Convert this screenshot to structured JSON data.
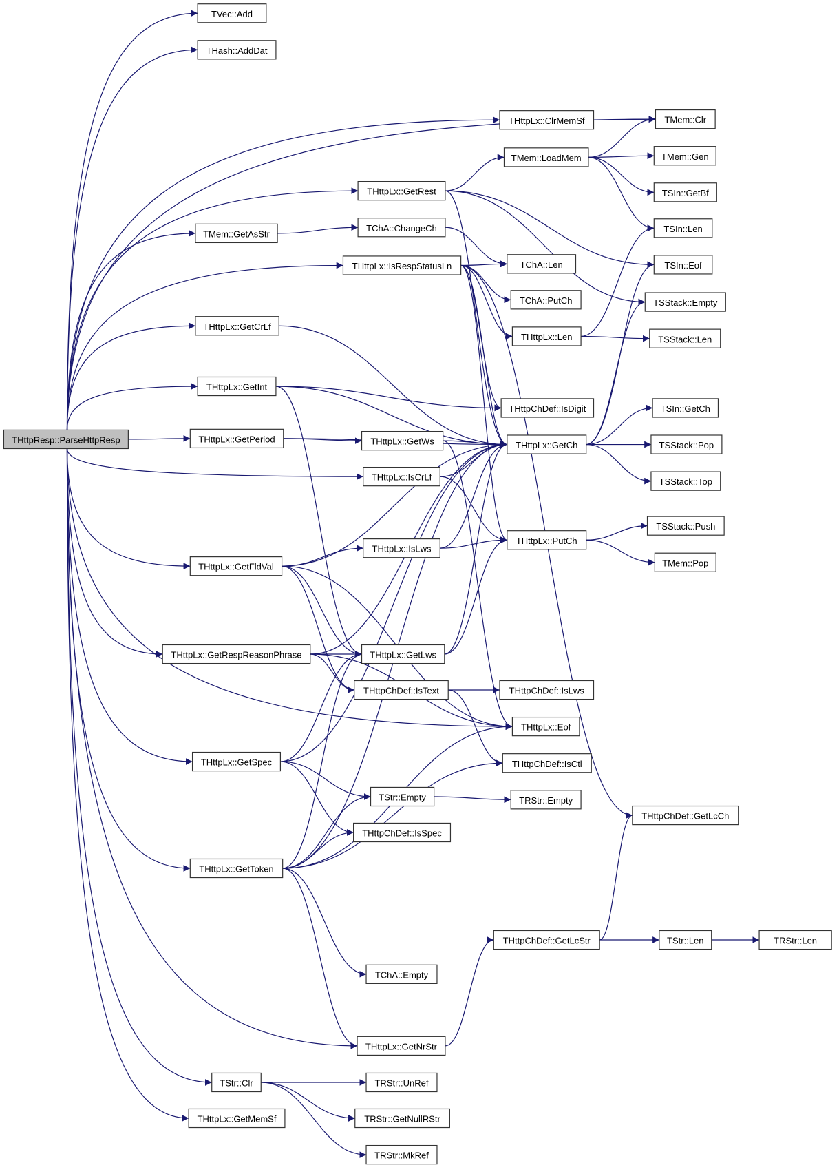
{
  "colors": {
    "edge": "#191970",
    "root_fill": "#bfbfbf",
    "node_fill": "#ffffff"
  },
  "nodes": [
    {
      "id": "root",
      "label": "THttpResp::ParseHttpResp"
    },
    {
      "id": "tvecadd",
      "label": "TVec::Add"
    },
    {
      "id": "hashadddat",
      "label": "THash::AddDat"
    },
    {
      "id": "memclr",
      "label": "TMem::Clr"
    },
    {
      "id": "clrmemsf",
      "label": "THttpLx::ClrMemSf"
    },
    {
      "id": "loadmem",
      "label": "TMem::LoadMem"
    },
    {
      "id": "memgen",
      "label": "TMem::Gen"
    },
    {
      "id": "sigetbf",
      "label": "TSIn::GetBf"
    },
    {
      "id": "getrest",
      "label": "THttpLx::GetRest"
    },
    {
      "id": "silen",
      "label": "TSIn::Len"
    },
    {
      "id": "getasstr",
      "label": "TMem::GetAsStr"
    },
    {
      "id": "changech",
      "label": "TChA::ChangeCh"
    },
    {
      "id": "sieof",
      "label": "TSIn::Eof"
    },
    {
      "id": "isrespstatusln",
      "label": "THttpLx::IsRespStatusLn"
    },
    {
      "id": "chalen",
      "label": "TChA::Len"
    },
    {
      "id": "ssempty",
      "label": "TSStack::Empty"
    },
    {
      "id": "chaputch",
      "label": "TChA::PutCh"
    },
    {
      "id": "lxlen",
      "label": "THttpLx::Len"
    },
    {
      "id": "sslen",
      "label": "TSStack::Len"
    },
    {
      "id": "getcrlf",
      "label": "THttpLx::GetCrLf"
    },
    {
      "id": "getint",
      "label": "THttpLx::GetInt"
    },
    {
      "id": "isdigit",
      "label": "THttpChDef::IsDigit"
    },
    {
      "id": "sigetch",
      "label": "TSIn::GetCh"
    },
    {
      "id": "getperiod",
      "label": "THttpLx::GetPeriod"
    },
    {
      "id": "getws",
      "label": "THttpLx::GetWs"
    },
    {
      "id": "getch",
      "label": "THttpLx::GetCh"
    },
    {
      "id": "sspop",
      "label": "TSStack::Pop"
    },
    {
      "id": "iscrlf",
      "label": "THttpLx::IsCrLf"
    },
    {
      "id": "sstop",
      "label": "TSStack::Top"
    },
    {
      "id": "sspush",
      "label": "TSStack::Push"
    },
    {
      "id": "putch",
      "label": "THttpLx::PutCh"
    },
    {
      "id": "islws",
      "label": "THttpLx::IsLws"
    },
    {
      "id": "getfldval",
      "label": "THttpLx::GetFldVal"
    },
    {
      "id": "mempop",
      "label": "TMem::Pop"
    },
    {
      "id": "getrespreason",
      "label": "THttpLx::GetRespReasonPhrase"
    },
    {
      "id": "getlws",
      "label": "THttpLx::GetLws"
    },
    {
      "id": "istext",
      "label": "THttpChDef::IsText"
    },
    {
      "id": "cdislws",
      "label": "THttpChDef::IsLws"
    },
    {
      "id": "lxeof",
      "label": "THttpLx::Eof"
    },
    {
      "id": "getspec",
      "label": "THttpLx::GetSpec"
    },
    {
      "id": "isctl",
      "label": "THttpChDef::IsCtl"
    },
    {
      "id": "strempty",
      "label": "TStr::Empty"
    },
    {
      "id": "rstrempty",
      "label": "TRStr::Empty"
    },
    {
      "id": "getlcch",
      "label": "THttpChDef::GetLcCh"
    },
    {
      "id": "isspec",
      "label": "THttpChDef::IsSpec"
    },
    {
      "id": "gettoken",
      "label": "THttpLx::GetToken"
    },
    {
      "id": "getlcstr",
      "label": "THttpChDef::GetLcStr"
    },
    {
      "id": "strlen",
      "label": "TStr::Len"
    },
    {
      "id": "rstrlen",
      "label": "TRStr::Len"
    },
    {
      "id": "chaempty",
      "label": "TChA::Empty"
    },
    {
      "id": "getnrstr",
      "label": "THttpLx::GetNrStr"
    },
    {
      "id": "strclr",
      "label": "TStr::Clr"
    },
    {
      "id": "unref",
      "label": "TRStr::UnRef"
    },
    {
      "id": "getnullrstr",
      "label": "TRStr::GetNullRStr"
    },
    {
      "id": "getmemsf",
      "label": "THttpLx::GetMemSf"
    },
    {
      "id": "mkref",
      "label": "TRStr::MkRef"
    }
  ],
  "edges": [
    [
      "root",
      "tvecadd"
    ],
    [
      "root",
      "hashadddat"
    ],
    [
      "root",
      "memclr"
    ],
    [
      "root",
      "clrmemsf"
    ],
    [
      "root",
      "getrest"
    ],
    [
      "root",
      "getasstr"
    ],
    [
      "root",
      "isrespstatusln"
    ],
    [
      "root",
      "getcrlf"
    ],
    [
      "root",
      "getint"
    ],
    [
      "root",
      "getperiod"
    ],
    [
      "root",
      "iscrlf"
    ],
    [
      "root",
      "getfldval"
    ],
    [
      "root",
      "getrespreason"
    ],
    [
      "root",
      "getspec"
    ],
    [
      "root",
      "gettoken"
    ],
    [
      "root",
      "lxeof"
    ],
    [
      "root",
      "getnrstr"
    ],
    [
      "root",
      "strclr"
    ],
    [
      "root",
      "getmemsf"
    ],
    [
      "clrmemsf",
      "memclr"
    ],
    [
      "loadmem",
      "memclr"
    ],
    [
      "loadmem",
      "memgen"
    ],
    [
      "loadmem",
      "sigetbf"
    ],
    [
      "loadmem",
      "silen"
    ],
    [
      "getrest",
      "loadmem"
    ],
    [
      "getrest",
      "sieof"
    ],
    [
      "getrest",
      "ssempty"
    ],
    [
      "getrest",
      "getch"
    ],
    [
      "getasstr",
      "changech"
    ],
    [
      "changech",
      "chalen"
    ],
    [
      "isrespstatusln",
      "chalen"
    ],
    [
      "isrespstatusln",
      "chaputch"
    ],
    [
      "isrespstatusln",
      "lxlen"
    ],
    [
      "isrespstatusln",
      "isdigit"
    ],
    [
      "isrespstatusln",
      "getch"
    ],
    [
      "isrespstatusln",
      "putch"
    ],
    [
      "isrespstatusln",
      "getlcch"
    ],
    [
      "lxlen",
      "silen"
    ],
    [
      "lxlen",
      "sslen"
    ],
    [
      "getcrlf",
      "getch"
    ],
    [
      "getint",
      "isdigit"
    ],
    [
      "getint",
      "getch"
    ],
    [
      "getint",
      "getlws"
    ],
    [
      "getperiod",
      "getch"
    ],
    [
      "getperiod",
      "getws"
    ],
    [
      "getws",
      "getch"
    ],
    [
      "getws",
      "lxeof"
    ],
    [
      "getch",
      "sigetch"
    ],
    [
      "getch",
      "sspop"
    ],
    [
      "getch",
      "sstop"
    ],
    [
      "getch",
      "sieof"
    ],
    [
      "getch",
      "ssempty"
    ],
    [
      "iscrlf",
      "getch"
    ],
    [
      "iscrlf",
      "putch"
    ],
    [
      "islws",
      "getch"
    ],
    [
      "islws",
      "putch"
    ],
    [
      "putch",
      "sspush"
    ],
    [
      "putch",
      "mempop"
    ],
    [
      "getfldval",
      "getch"
    ],
    [
      "getfldval",
      "islws"
    ],
    [
      "getfldval",
      "getlws"
    ],
    [
      "getfldval",
      "istext"
    ],
    [
      "getfldval",
      "lxeof"
    ],
    [
      "getrespreason",
      "getlws"
    ],
    [
      "getrespreason",
      "istext"
    ],
    [
      "getrespreason",
      "getch"
    ],
    [
      "getrespreason",
      "lxeof"
    ],
    [
      "getlws",
      "getch"
    ],
    [
      "getlws",
      "putch"
    ],
    [
      "istext",
      "cdislws"
    ],
    [
      "istext",
      "isctl"
    ],
    [
      "getspec",
      "getlws"
    ],
    [
      "getspec",
      "getch"
    ],
    [
      "getspec",
      "strempty"
    ],
    [
      "getspec",
      "isspec"
    ],
    [
      "strempty",
      "rstrempty"
    ],
    [
      "gettoken",
      "getlws"
    ],
    [
      "gettoken",
      "strempty"
    ],
    [
      "gettoken",
      "isspec"
    ],
    [
      "gettoken",
      "lxeof"
    ],
    [
      "gettoken",
      "isctl"
    ],
    [
      "gettoken",
      "chaempty"
    ],
    [
      "gettoken",
      "getnrstr"
    ],
    [
      "gettoken",
      "getch"
    ],
    [
      "getnrstr",
      "getlcstr"
    ],
    [
      "getlcstr",
      "getlcch"
    ],
    [
      "getlcstr",
      "strlen"
    ],
    [
      "strlen",
      "rstrlen"
    ],
    [
      "strclr",
      "unref"
    ],
    [
      "strclr",
      "getnullrstr"
    ],
    [
      "strclr",
      "mkref"
    ]
  ]
}
